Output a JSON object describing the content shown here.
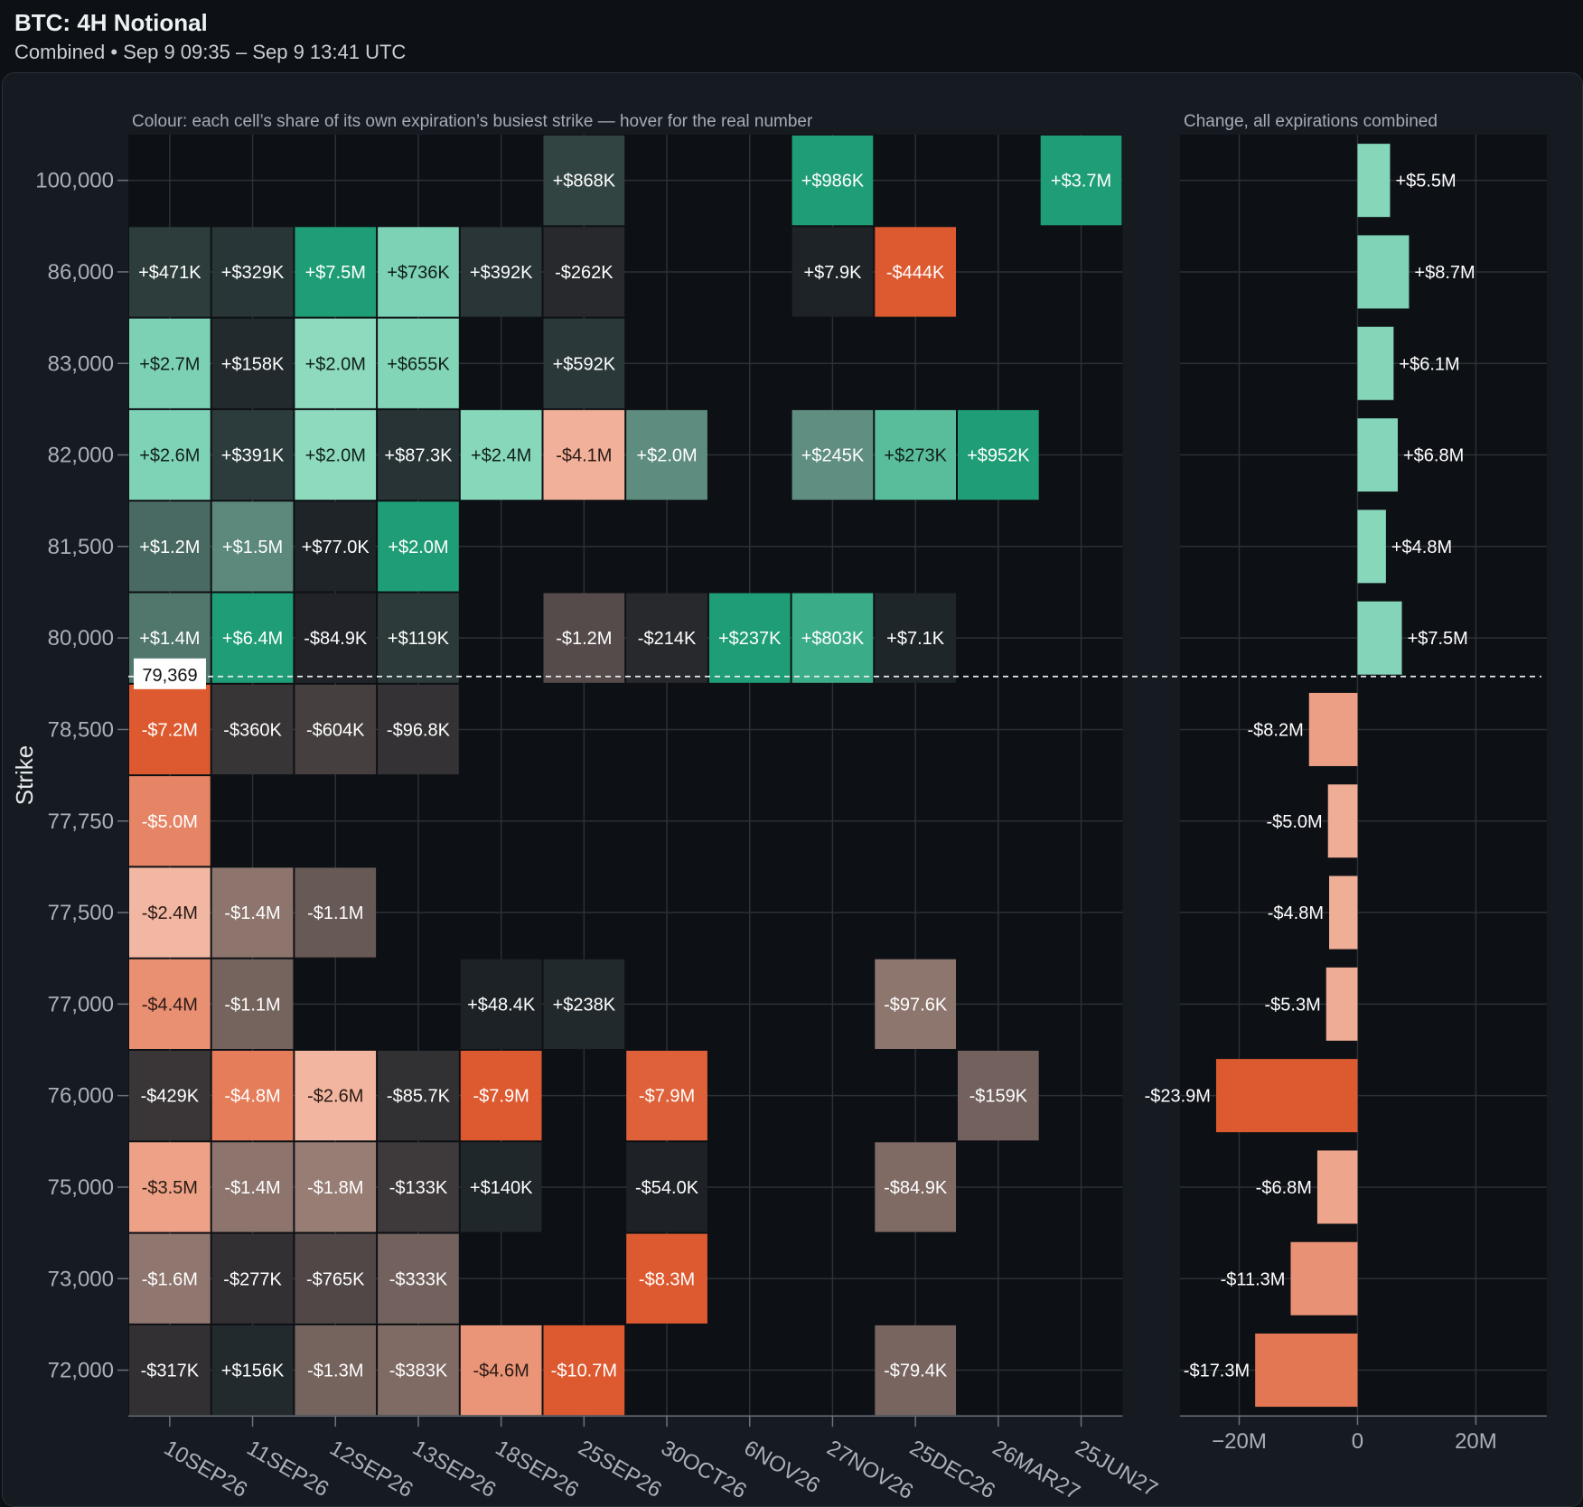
{
  "header": {
    "title": "BTC: 4H Notional",
    "subtitle": "Combined • Sep 9 09:35 – Sep 9 13:41 UTC"
  },
  "colors": {
    "positive_max": "#1f9d76",
    "positive_light": "#8fdbc0",
    "negative_max": "#dd5a31",
    "negative_light": "#f4c3b0",
    "cell_neutral": "#1b1f24",
    "background": "#0d1014",
    "grid": "#2c3138"
  },
  "chart_data": [
    {
      "type": "heatmap",
      "title": "",
      "note": "Colour: each cell’s share of its own expiration’s busiest strike — hover for the real number",
      "ylabel": "Strike",
      "xlabel": "",
      "spot_label": "79,369",
      "spot_value": 79369,
      "x": [
        "10SEP26",
        "11SEP26",
        "12SEP26",
        "13SEP26",
        "18SEP26",
        "25SEP26",
        "30OCT26",
        "6NOV26",
        "27NOV26",
        "25DEC26",
        "26MAR27",
        "25JUN27"
      ],
      "y": [
        "100,000",
        "86,000",
        "83,000",
        "82,000",
        "81,500",
        "80,000",
        "78,500",
        "77,750",
        "77,500",
        "77,000",
        "76,000",
        "75,000",
        "73,000",
        "72,000"
      ],
      "cells": [
        {
          "x": "25SEP26",
          "y": "100,000",
          "value": 868000,
          "label": "+$868K"
        },
        {
          "x": "27NOV26",
          "y": "100,000",
          "value": 986000,
          "label": "+$986K"
        },
        {
          "x": "25JUN27",
          "y": "100,000",
          "value": 3700000,
          "label": "+$3.7M"
        },
        {
          "x": "10SEP26",
          "y": "86,000",
          "value": 471000,
          "label": "+$471K"
        },
        {
          "x": "11SEP26",
          "y": "86,000",
          "value": 329000,
          "label": "+$329K"
        },
        {
          "x": "12SEP26",
          "y": "86,000",
          "value": 7500000,
          "label": "+$7.5M"
        },
        {
          "x": "13SEP26",
          "y": "86,000",
          "value": 736000,
          "label": "+$736K"
        },
        {
          "x": "18SEP26",
          "y": "86,000",
          "value": 392000,
          "label": "+$392K"
        },
        {
          "x": "25SEP26",
          "y": "86,000",
          "value": -262000,
          "label": "-$262K"
        },
        {
          "x": "27NOV26",
          "y": "86,000",
          "value": 7900,
          "label": "+$7.9K"
        },
        {
          "x": "25DEC26",
          "y": "86,000",
          "value": -444000,
          "label": "-$444K"
        },
        {
          "x": "10SEP26",
          "y": "83,000",
          "value": 2700000,
          "label": "+$2.7M"
        },
        {
          "x": "11SEP26",
          "y": "83,000",
          "value": 158000,
          "label": "+$158K"
        },
        {
          "x": "12SEP26",
          "y": "83,000",
          "value": 2000000,
          "label": "+$2.0M"
        },
        {
          "x": "13SEP26",
          "y": "83,000",
          "value": 655000,
          "label": "+$655K"
        },
        {
          "x": "25SEP26",
          "y": "83,000",
          "value": 592000,
          "label": "+$592K"
        },
        {
          "x": "10SEP26",
          "y": "82,000",
          "value": 2600000,
          "label": "+$2.6M"
        },
        {
          "x": "11SEP26",
          "y": "82,000",
          "value": 391000,
          "label": "+$391K"
        },
        {
          "x": "12SEP26",
          "y": "82,000",
          "value": 2000000,
          "label": "+$2.0M"
        },
        {
          "x": "13SEP26",
          "y": "82,000",
          "value": 87300,
          "label": "+$87.3K"
        },
        {
          "x": "18SEP26",
          "y": "82,000",
          "value": 2400000,
          "label": "+$2.4M"
        },
        {
          "x": "25SEP26",
          "y": "82,000",
          "value": -4100000,
          "label": "-$4.1M"
        },
        {
          "x": "30OCT26",
          "y": "82,000",
          "value": 2000000,
          "label": "+$2.0M"
        },
        {
          "x": "27NOV26",
          "y": "82,000",
          "value": 245000,
          "label": "+$245K"
        },
        {
          "x": "25DEC26",
          "y": "82,000",
          "value": 273000,
          "label": "+$273K"
        },
        {
          "x": "26MAR27",
          "y": "82,000",
          "value": 952000,
          "label": "+$952K"
        },
        {
          "x": "10SEP26",
          "y": "81,500",
          "value": 1200000,
          "label": "+$1.2M"
        },
        {
          "x": "11SEP26",
          "y": "81,500",
          "value": 1500000,
          "label": "+$1.5M"
        },
        {
          "x": "12SEP26",
          "y": "81,500",
          "value": 77000,
          "label": "+$77.0K"
        },
        {
          "x": "13SEP26",
          "y": "81,500",
          "value": 2000000,
          "label": "+$2.0M"
        },
        {
          "x": "10SEP26",
          "y": "80,000",
          "value": 1400000,
          "label": "+$1.4M"
        },
        {
          "x": "11SEP26",
          "y": "80,000",
          "value": 6400000,
          "label": "+$6.4M"
        },
        {
          "x": "12SEP26",
          "y": "80,000",
          "value": -84900,
          "label": "-$84.9K"
        },
        {
          "x": "13SEP26",
          "y": "80,000",
          "value": 119000,
          "label": "+$119K"
        },
        {
          "x": "25SEP26",
          "y": "80,000",
          "value": -1200000,
          "label": "-$1.2M"
        },
        {
          "x": "30OCT26",
          "y": "80,000",
          "value": -214000,
          "label": "-$214K"
        },
        {
          "x": "6NOV26",
          "y": "80,000",
          "value": 237000,
          "label": "+$237K"
        },
        {
          "x": "27NOV26",
          "y": "80,000",
          "value": 803000,
          "label": "+$803K"
        },
        {
          "x": "25DEC26",
          "y": "80,000",
          "value": 7100,
          "label": "+$7.1K"
        },
        {
          "x": "10SEP26",
          "y": "78,500",
          "value": -7200000,
          "label": "-$7.2M"
        },
        {
          "x": "11SEP26",
          "y": "78,500",
          "value": -360000,
          "label": "-$360K"
        },
        {
          "x": "12SEP26",
          "y": "78,500",
          "value": -604000,
          "label": "-$604K"
        },
        {
          "x": "13SEP26",
          "y": "78,500",
          "value": -96800,
          "label": "-$96.8K"
        },
        {
          "x": "10SEP26",
          "y": "77,750",
          "value": -5000000,
          "label": "-$5.0M"
        },
        {
          "x": "10SEP26",
          "y": "77,500",
          "value": -2400000,
          "label": "-$2.4M"
        },
        {
          "x": "11SEP26",
          "y": "77,500",
          "value": -1400000,
          "label": "-$1.4M"
        },
        {
          "x": "12SEP26",
          "y": "77,500",
          "value": -1100000,
          "label": "-$1.1M"
        },
        {
          "x": "10SEP26",
          "y": "77,000",
          "value": -4400000,
          "label": "-$4.4M"
        },
        {
          "x": "11SEP26",
          "y": "77,000",
          "value": -1100000,
          "label": "-$1.1M"
        },
        {
          "x": "18SEP26",
          "y": "77,000",
          "value": 48400,
          "label": "+$48.4K"
        },
        {
          "x": "25SEP26",
          "y": "77,000",
          "value": 238000,
          "label": "+$238K"
        },
        {
          "x": "25DEC26",
          "y": "77,000",
          "value": -97600,
          "label": "-$97.6K"
        },
        {
          "x": "10SEP26",
          "y": "76,000",
          "value": -429000,
          "label": "-$429K"
        },
        {
          "x": "11SEP26",
          "y": "76,000",
          "value": -4800000,
          "label": "-$4.8M"
        },
        {
          "x": "12SEP26",
          "y": "76,000",
          "value": -2600000,
          "label": "-$2.6M"
        },
        {
          "x": "13SEP26",
          "y": "76,000",
          "value": -85700,
          "label": "-$85.7K"
        },
        {
          "x": "18SEP26",
          "y": "76,000",
          "value": -7900000,
          "label": "-$7.9M"
        },
        {
          "x": "30OCT26",
          "y": "76,000",
          "value": -7900000,
          "label": "-$7.9M"
        },
        {
          "x": "26MAR27",
          "y": "76,000",
          "value": -159000,
          "label": "-$159K"
        },
        {
          "x": "10SEP26",
          "y": "75,000",
          "value": -3500000,
          "label": "-$3.5M"
        },
        {
          "x": "11SEP26",
          "y": "75,000",
          "value": -1400000,
          "label": "-$1.4M"
        },
        {
          "x": "12SEP26",
          "y": "75,000",
          "value": -1800000,
          "label": "-$1.8M"
        },
        {
          "x": "13SEP26",
          "y": "75,000",
          "value": -133000,
          "label": "-$133K"
        },
        {
          "x": "18SEP26",
          "y": "75,000",
          "value": 140000,
          "label": "+$140K"
        },
        {
          "x": "30OCT26",
          "y": "75,000",
          "value": -54000,
          "label": "-$54.0K"
        },
        {
          "x": "25DEC26",
          "y": "75,000",
          "value": -84900,
          "label": "-$84.9K"
        },
        {
          "x": "10SEP26",
          "y": "73,000",
          "value": -1600000,
          "label": "-$1.6M"
        },
        {
          "x": "11SEP26",
          "y": "73,000",
          "value": -277000,
          "label": "-$277K"
        },
        {
          "x": "12SEP26",
          "y": "73,000",
          "value": -765000,
          "label": "-$765K"
        },
        {
          "x": "13SEP26",
          "y": "73,000",
          "value": -333000,
          "label": "-$333K"
        },
        {
          "x": "30OCT26",
          "y": "73,000",
          "value": -8300000,
          "label": "-$8.3M"
        },
        {
          "x": "10SEP26",
          "y": "72,000",
          "value": -317000,
          "label": "-$317K"
        },
        {
          "x": "11SEP26",
          "y": "72,000",
          "value": 156000,
          "label": "+$156K"
        },
        {
          "x": "12SEP26",
          "y": "72,000",
          "value": -1300000,
          "label": "-$1.3M"
        },
        {
          "x": "13SEP26",
          "y": "72,000",
          "value": -383000,
          "label": "-$383K"
        },
        {
          "x": "18SEP26",
          "y": "72,000",
          "value": -4600000,
          "label": "-$4.6M"
        },
        {
          "x": "25SEP26",
          "y": "72,000",
          "value": -10700000,
          "label": "-$10.7M"
        },
        {
          "x": "25DEC26",
          "y": "72,000",
          "value": -79400,
          "label": "-$79.4K"
        }
      ]
    },
    {
      "type": "bar",
      "orientation": "horizontal",
      "title": "Change, all expirations combined",
      "categories": [
        "100,000",
        "86,000",
        "83,000",
        "82,000",
        "81,500",
        "80,000",
        "78,500",
        "77,750",
        "77,500",
        "77,000",
        "76,000",
        "75,000",
        "73,000",
        "72,000"
      ],
      "values": [
        5500000,
        8700000,
        6100000,
        6800000,
        4800000,
        7500000,
        -8200000,
        -5000000,
        -4800000,
        -5300000,
        -23900000,
        -6800000,
        -11300000,
        -17300000
      ],
      "labels": [
        "+$5.5M",
        "+$8.7M",
        "+$6.1M",
        "+$6.8M",
        "+$4.8M",
        "+$7.5M",
        "-$8.2M",
        "-$5.0M",
        "-$4.8M",
        "-$5.3M",
        "-$23.9M",
        "-$6.8M",
        "-$11.3M",
        "-$17.3M"
      ],
      "xticks": [
        -20000000,
        0,
        20000000
      ],
      "xtick_labels": [
        "−20M",
        "0",
        "20M"
      ],
      "xlim": [
        -30000000,
        32000000
      ]
    }
  ]
}
